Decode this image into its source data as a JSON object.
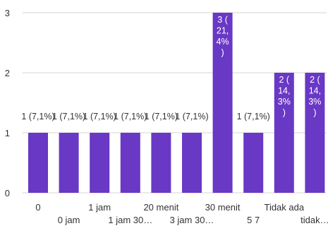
{
  "colors": {
    "bar": "#6939c6",
    "grid": "#d6d6d6",
    "axis_text": "#333333",
    "bar_label_inside": "#ffffff",
    "bar_label_outside": "#333333"
  },
  "chart_data": {
    "type": "bar",
    "title": "",
    "xlabel": "",
    "ylabel": "",
    "ylim": [
      0,
      3
    ],
    "yticks": [
      "0",
      "1",
      "2",
      "3"
    ],
    "grid": true,
    "categories": [
      "0",
      "0 jam",
      "1 jam",
      "1 jam 30…",
      "20 menit",
      "3 jam 30…",
      "30 menit",
      "5 7",
      "Tidak ada",
      "tidak…"
    ],
    "values": [
      1,
      1,
      1,
      1,
      1,
      1,
      3,
      1,
      2,
      2
    ],
    "data_labels": [
      [
        "1 (7,1%)"
      ],
      [
        "1 (7,1%)"
      ],
      [
        "1 (7,1%)"
      ],
      [
        "1 (7,1%)"
      ],
      [
        "1 (7,1%)"
      ],
      [
        "1 (7,1%)"
      ],
      [
        "3 (",
        "21,",
        "4%",
        ")"
      ],
      [
        "1 (7,1%)"
      ],
      [
        "2 (",
        "14,",
        "3%",
        ")"
      ],
      [
        "2 (",
        "14,",
        "3%",
        ")"
      ]
    ]
  }
}
